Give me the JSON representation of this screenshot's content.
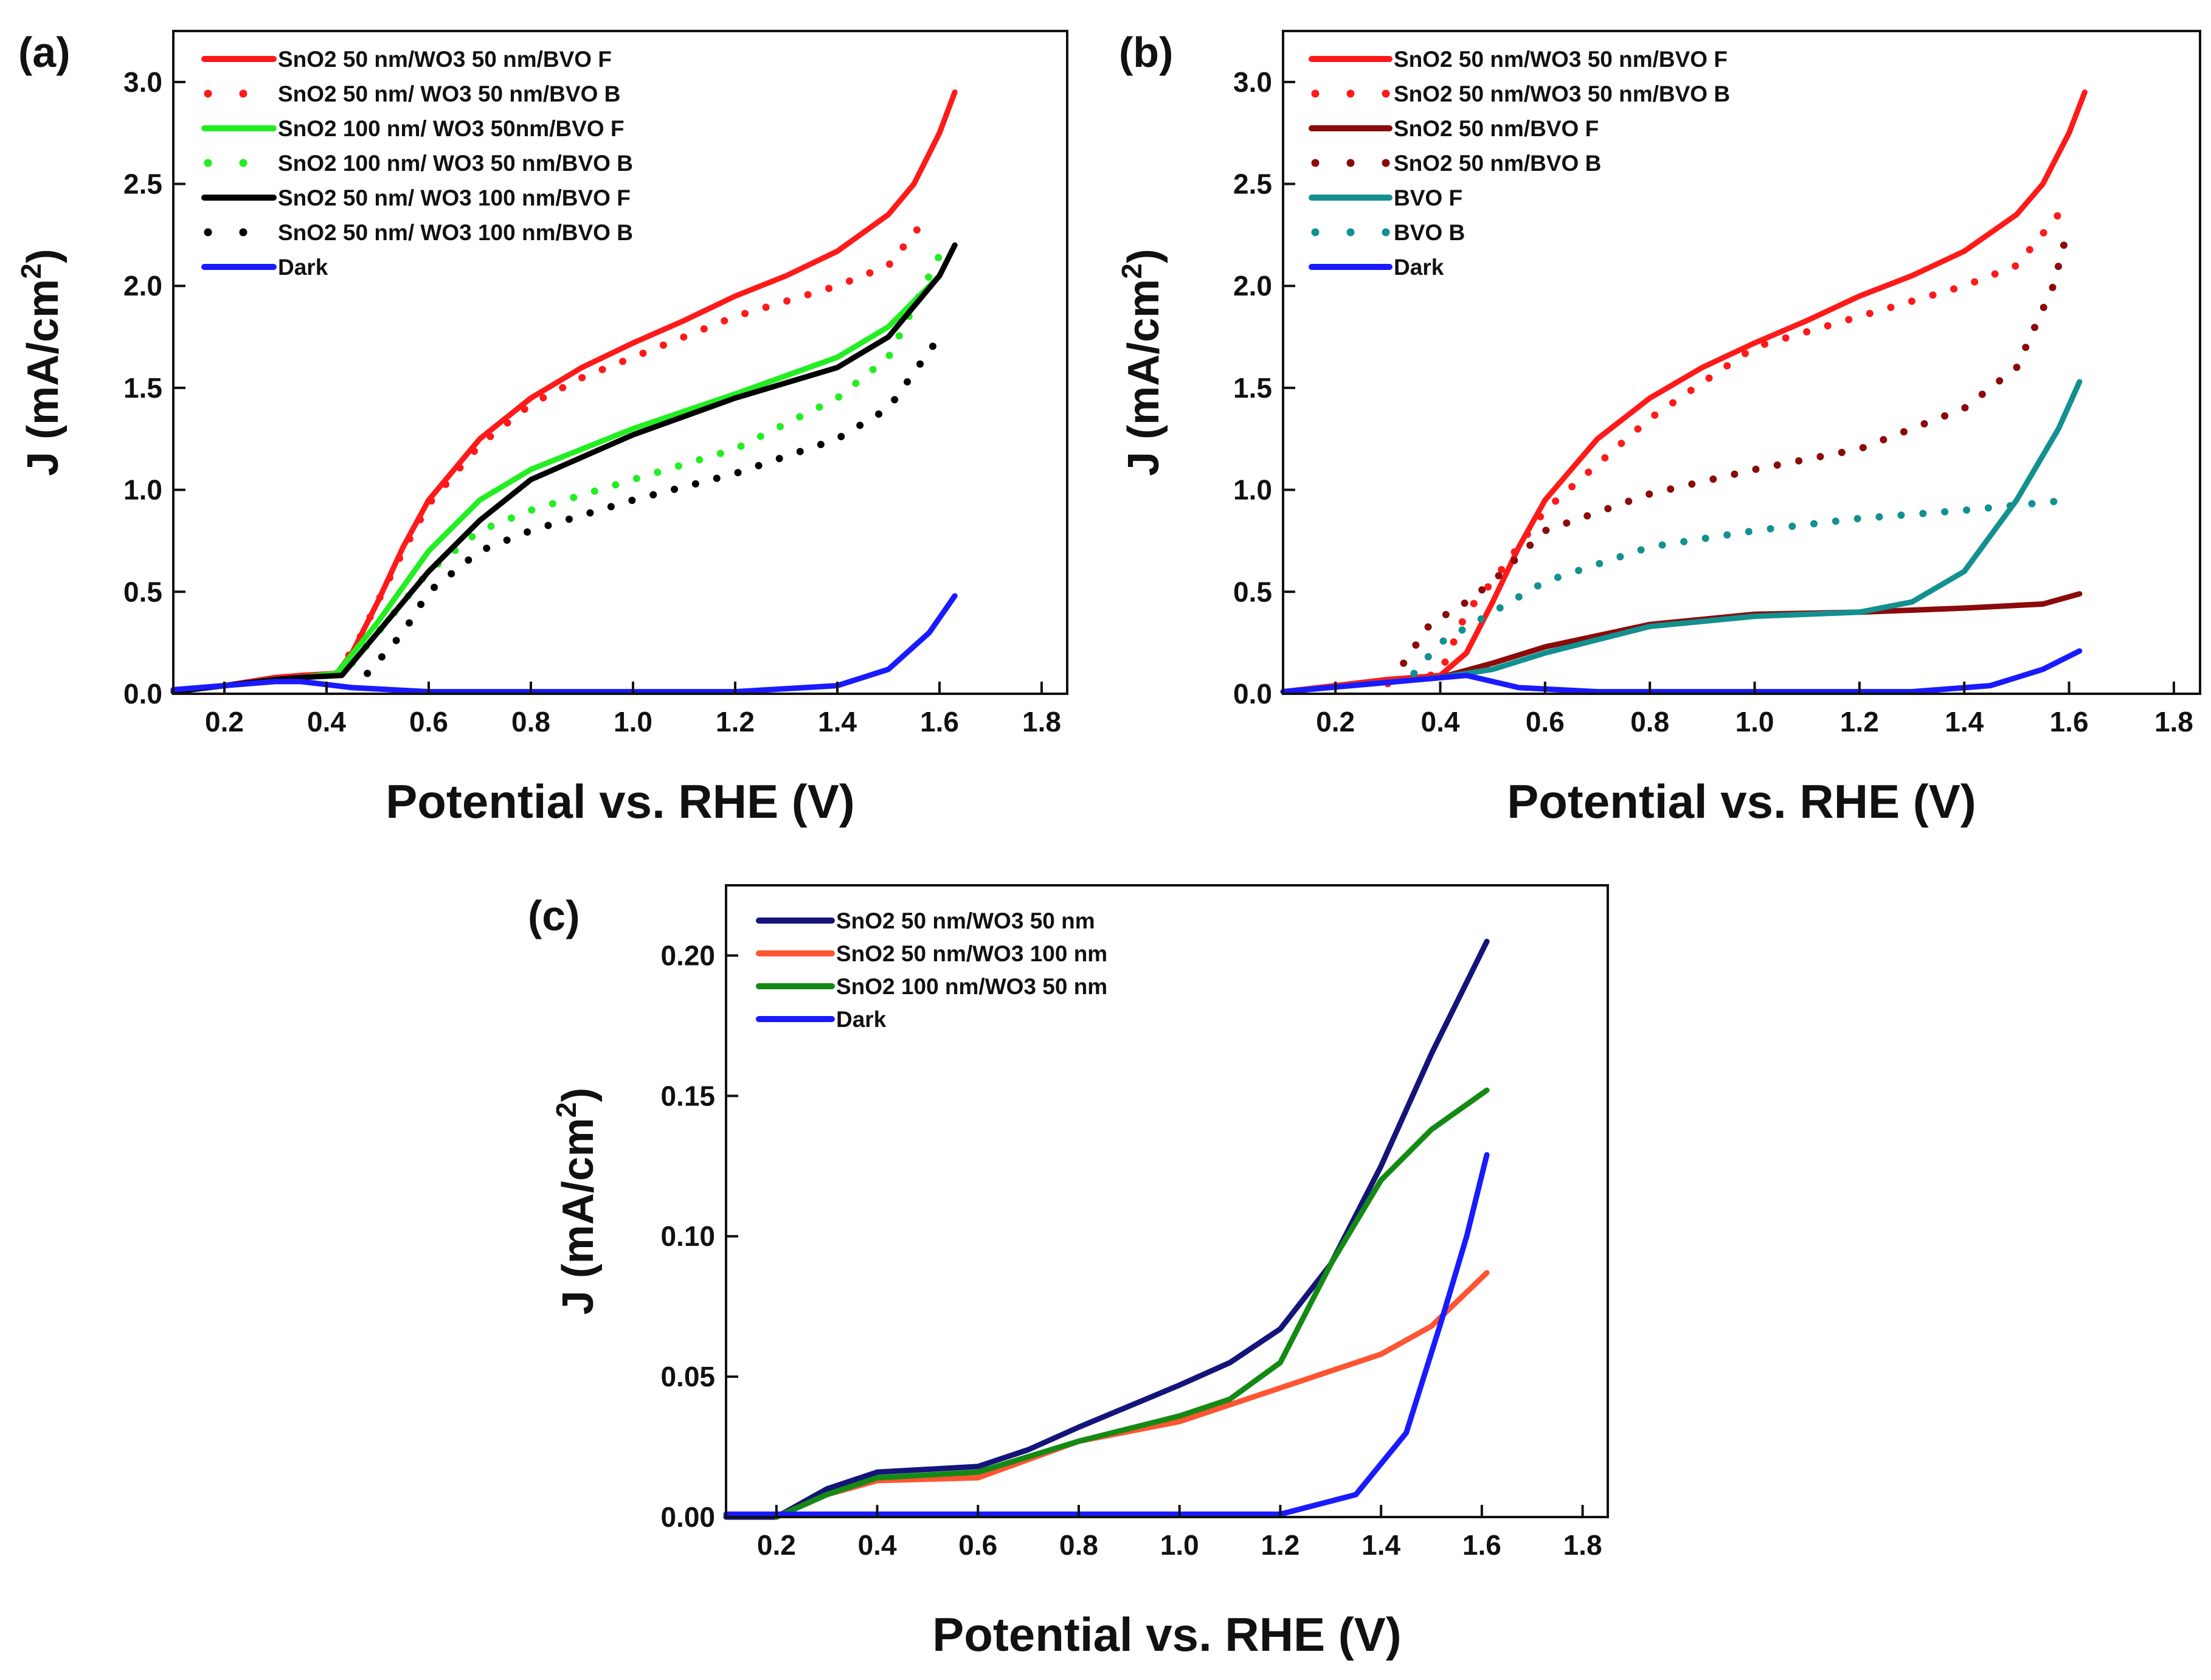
{
  "chart_data": [
    {
      "panel_label": "(a)",
      "type": "line",
      "xlabel": "Potential vs. RHE (V)",
      "ylabel": "J (mA/cm",
      "ylabel_sup": "2",
      "ylabel_close": ")",
      "xlim": [
        0.1,
        1.85
      ],
      "ylim": [
        0,
        3.25
      ],
      "xticks": [
        "0.2",
        "0.4",
        "0.6",
        "0.8",
        "1.0",
        "1.2",
        "1.4",
        "1.6",
        "1.8"
      ],
      "yticks": [
        "0.0",
        "0.5",
        "1.0",
        "1.5",
        "2.0",
        "2.5",
        "3.0"
      ],
      "grid": false,
      "legend_position": "top-left",
      "series": [
        {
          "name": "SnO2 50 nm/WO3 50 nm/BVO F",
          "color": "#ff1a1a",
          "style": "solid",
          "points": [
            [
              0.1,
              0.01
            ],
            [
              0.2,
              0.04
            ],
            [
              0.3,
              0.08
            ],
            [
              0.35,
              0.09
            ],
            [
              0.42,
              0.1
            ],
            [
              0.45,
              0.2
            ],
            [
              0.5,
              0.45
            ],
            [
              0.55,
              0.72
            ],
            [
              0.6,
              0.95
            ],
            [
              0.7,
              1.25
            ],
            [
              0.8,
              1.45
            ],
            [
              0.9,
              1.6
            ],
            [
              1.0,
              1.72
            ],
            [
              1.1,
              1.83
            ],
            [
              1.2,
              1.95
            ],
            [
              1.3,
              2.05
            ],
            [
              1.4,
              2.17
            ],
            [
              1.5,
              2.35
            ],
            [
              1.55,
              2.5
            ],
            [
              1.6,
              2.75
            ],
            [
              1.63,
              2.95
            ]
          ]
        },
        {
          "name": "SnO2 50 nm/ WO3 50 nm/BVO B",
          "color": "#ff1a1a",
          "style": "dot",
          "points": [
            [
              0.42,
              0.1
            ],
            [
              0.46,
              0.25
            ],
            [
              0.5,
              0.45
            ],
            [
              0.55,
              0.7
            ],
            [
              0.6,
              0.93
            ],
            [
              0.7,
              1.22
            ],
            [
              0.8,
              1.42
            ],
            [
              0.9,
              1.55
            ],
            [
              1.0,
              1.65
            ],
            [
              1.2,
              1.85
            ],
            [
              1.4,
              2.0
            ],
            [
              1.5,
              2.1
            ],
            [
              1.58,
              2.35
            ]
          ]
        },
        {
          "name": "SnO2 100 nm/ WO3 50nm/BVO F",
          "color": "#22ee22",
          "style": "solid",
          "points": [
            [
              0.1,
              0.01
            ],
            [
              0.2,
              0.04
            ],
            [
              0.3,
              0.07
            ],
            [
              0.35,
              0.08
            ],
            [
              0.42,
              0.1
            ],
            [
              0.5,
              0.35
            ],
            [
              0.6,
              0.7
            ],
            [
              0.7,
              0.95
            ],
            [
              0.8,
              1.1
            ],
            [
              1.0,
              1.3
            ],
            [
              1.2,
              1.47
            ],
            [
              1.4,
              1.65
            ],
            [
              1.5,
              1.8
            ],
            [
              1.6,
              2.05
            ],
            [
              1.63,
              2.2
            ]
          ]
        },
        {
          "name": "SnO2 100 nm/ WO3 50 nm/BVO B",
          "color": "#22ee22",
          "style": "dot",
          "points": [
            [
              0.45,
              0.15
            ],
            [
              0.5,
              0.3
            ],
            [
              0.6,
              0.6
            ],
            [
              0.7,
              0.8
            ],
            [
              0.8,
              0.9
            ],
            [
              1.0,
              1.05
            ],
            [
              1.2,
              1.2
            ],
            [
              1.4,
              1.45
            ],
            [
              1.5,
              1.65
            ],
            [
              1.6,
              2.15
            ]
          ]
        },
        {
          "name": "SnO2 50 nm/ WO3 100 nm/BVO F",
          "color": "#000000",
          "style": "solid",
          "points": [
            [
              0.1,
              0.01
            ],
            [
              0.2,
              0.04
            ],
            [
              0.3,
              0.07
            ],
            [
              0.35,
              0.08
            ],
            [
              0.43,
              0.09
            ],
            [
              0.5,
              0.3
            ],
            [
              0.6,
              0.6
            ],
            [
              0.7,
              0.85
            ],
            [
              0.8,
              1.05
            ],
            [
              1.0,
              1.27
            ],
            [
              1.2,
              1.45
            ],
            [
              1.4,
              1.6
            ],
            [
              1.5,
              1.75
            ],
            [
              1.6,
              2.05
            ],
            [
              1.63,
              2.2
            ]
          ]
        },
        {
          "name": "SnO2 50 nm/ WO3 100 nm/BVO B",
          "color": "#000000",
          "style": "dot",
          "points": [
            [
              0.48,
              0.1
            ],
            [
              0.55,
              0.3
            ],
            [
              0.6,
              0.5
            ],
            [
              0.7,
              0.7
            ],
            [
              0.8,
              0.8
            ],
            [
              1.0,
              0.95
            ],
            [
              1.2,
              1.08
            ],
            [
              1.4,
              1.25
            ],
            [
              1.5,
              1.4
            ],
            [
              1.6,
              1.75
            ]
          ]
        },
        {
          "name": "Dark",
          "color": "#1a1aff",
          "style": "solid",
          "points": [
            [
              0.1,
              0.02
            ],
            [
              0.3,
              0.06
            ],
            [
              0.35,
              0.06
            ],
            [
              0.45,
              0.03
            ],
            [
              0.6,
              0.01
            ],
            [
              1.2,
              0.01
            ],
            [
              1.4,
              0.04
            ],
            [
              1.5,
              0.12
            ],
            [
              1.58,
              0.3
            ],
            [
              1.63,
              0.48
            ]
          ]
        }
      ]
    },
    {
      "panel_label": "(b)",
      "type": "line",
      "xlabel": "Potential vs. RHE (V)",
      "ylabel": "J (mA/cm",
      "ylabel_sup": "2",
      "ylabel_close": ")",
      "xlim": [
        0.1,
        1.85
      ],
      "ylim": [
        0,
        3.25
      ],
      "xticks": [
        "0.2",
        "0.4",
        "0.6",
        "0.8",
        "1.0",
        "1.2",
        "1.4",
        "1.6",
        "1.8"
      ],
      "yticks": [
        "0.0",
        "0.5",
        "1.0",
        "1.5",
        "2.0",
        "2.5",
        "3.0"
      ],
      "grid": false,
      "legend_position": "top-left",
      "series": [
        {
          "name": "SnO2 50 nm/WO3 50 nm/BVO F",
          "color": "#ff1a1a",
          "style": "solid",
          "points": [
            [
              0.1,
              0.01
            ],
            [
              0.2,
              0.04
            ],
            [
              0.3,
              0.07
            ],
            [
              0.4,
              0.09
            ],
            [
              0.45,
              0.2
            ],
            [
              0.5,
              0.45
            ],
            [
              0.55,
              0.72
            ],
            [
              0.6,
              0.95
            ],
            [
              0.7,
              1.25
            ],
            [
              0.8,
              1.45
            ],
            [
              0.9,
              1.6
            ],
            [
              1.0,
              1.72
            ],
            [
              1.1,
              1.83
            ],
            [
              1.2,
              1.95
            ],
            [
              1.3,
              2.05
            ],
            [
              1.4,
              2.17
            ],
            [
              1.5,
              2.35
            ],
            [
              1.55,
              2.5
            ],
            [
              1.6,
              2.75
            ],
            [
              1.63,
              2.95
            ]
          ]
        },
        {
          "name": "SnO2 50 nm/WO3 50 nm/BVO B",
          "color": "#ff1a1a",
          "style": "dot",
          "points": [
            [
              0.3,
              0.05
            ],
            [
              0.4,
              0.1
            ],
            [
              0.45,
              0.4
            ],
            [
              0.5,
              0.55
            ],
            [
              0.6,
              0.9
            ],
            [
              0.8,
              1.35
            ],
            [
              1.0,
              1.7
            ],
            [
              1.2,
              1.85
            ],
            [
              1.4,
              2.0
            ],
            [
              1.5,
              2.1
            ],
            [
              1.58,
              2.35
            ]
          ]
        },
        {
          "name": "SnO2 50 nm/BVO F",
          "color": "#8b0a0a",
          "style": "solid",
          "points": [
            [
              0.1,
              0.01
            ],
            [
              0.4,
              0.08
            ],
            [
              0.5,
              0.15
            ],
            [
              0.6,
              0.23
            ],
            [
              0.8,
              0.34
            ],
            [
              1.0,
              0.39
            ],
            [
              1.2,
              0.4
            ],
            [
              1.4,
              0.42
            ],
            [
              1.55,
              0.44
            ],
            [
              1.62,
              0.49
            ]
          ]
        },
        {
          "name": "SnO2 50 nm/BVO B",
          "color": "#8b0a0a",
          "style": "dot",
          "points": [
            [
              0.33,
              0.15
            ],
            [
              0.38,
              0.34
            ],
            [
              0.45,
              0.45
            ],
            [
              0.5,
              0.55
            ],
            [
              0.6,
              0.8
            ],
            [
              0.8,
              0.98
            ],
            [
              1.0,
              1.1
            ],
            [
              1.2,
              1.2
            ],
            [
              1.4,
              1.4
            ],
            [
              1.5,
              1.6
            ],
            [
              1.57,
              2.0
            ],
            [
              1.6,
              2.3
            ]
          ]
        },
        {
          "name": "BVO F",
          "color": "#139090",
          "style": "solid",
          "points": [
            [
              0.1,
              0.01
            ],
            [
              0.4,
              0.08
            ],
            [
              0.5,
              0.12
            ],
            [
              0.6,
              0.2
            ],
            [
              0.8,
              0.33
            ],
            [
              1.0,
              0.38
            ],
            [
              1.2,
              0.4
            ],
            [
              1.3,
              0.45
            ],
            [
              1.4,
              0.6
            ],
            [
              1.5,
              0.95
            ],
            [
              1.58,
              1.3
            ],
            [
              1.62,
              1.53
            ]
          ]
        },
        {
          "name": "BVO B",
          "color": "#139090",
          "style": "dot",
          "points": [
            [
              0.35,
              0.1
            ],
            [
              0.4,
              0.25
            ],
            [
              0.5,
              0.4
            ],
            [
              0.6,
              0.55
            ],
            [
              0.8,
              0.72
            ],
            [
              1.0,
              0.8
            ],
            [
              1.2,
              0.86
            ],
            [
              1.4,
              0.9
            ],
            [
              1.6,
              0.95
            ]
          ]
        },
        {
          "name": "Dark",
          "color": "#1a1aff",
          "style": "solid",
          "points": [
            [
              0.1,
              0.01
            ],
            [
              0.45,
              0.09
            ],
            [
              0.55,
              0.03
            ],
            [
              0.7,
              0.01
            ],
            [
              1.3,
              0.01
            ],
            [
              1.45,
              0.04
            ],
            [
              1.55,
              0.12
            ],
            [
              1.62,
              0.21
            ]
          ]
        }
      ]
    },
    {
      "panel_label": "(c)",
      "type": "line",
      "xlabel": "Potential vs. RHE (V)",
      "ylabel": "J (mA/cm",
      "ylabel_sup": "2",
      "ylabel_close": ")",
      "xlim": [
        0.1,
        1.85
      ],
      "ylim": [
        0,
        0.225
      ],
      "xticks": [
        "0.2",
        "0.4",
        "0.6",
        "0.8",
        "1.0",
        "1.2",
        "1.4",
        "1.6",
        "1.8"
      ],
      "yticks": [
        "0.00",
        "0.05",
        "0.10",
        "0.15",
        "0.20"
      ],
      "grid": false,
      "legend_position": "top-left",
      "series": [
        {
          "name": "SnO2 50 nm/WO3 50 nm",
          "color": "#14147a",
          "style": "solid",
          "points": [
            [
              0.1,
              0
            ],
            [
              0.2,
              0
            ],
            [
              0.3,
              0.01
            ],
            [
              0.4,
              0.016
            ],
            [
              0.6,
              0.018
            ],
            [
              0.7,
              0.024
            ],
            [
              0.8,
              0.032
            ],
            [
              1.0,
              0.047
            ],
            [
              1.1,
              0.055
            ],
            [
              1.2,
              0.067
            ],
            [
              1.3,
              0.09
            ],
            [
              1.4,
              0.125
            ],
            [
              1.5,
              0.165
            ],
            [
              1.61,
              0.205
            ]
          ]
        },
        {
          "name": "SnO2 50 nm/WO3 100 nm",
          "color": "#ff5533",
          "style": "solid",
          "points": [
            [
              0.2,
              0
            ],
            [
              0.3,
              0.008
            ],
            [
              0.4,
              0.013
            ],
            [
              0.6,
              0.014
            ],
            [
              0.8,
              0.027
            ],
            [
              1.0,
              0.034
            ],
            [
              1.2,
              0.046
            ],
            [
              1.4,
              0.058
            ],
            [
              1.5,
              0.068
            ],
            [
              1.61,
              0.087
            ]
          ]
        },
        {
          "name": "SnO2 100 nm/WO3 50 nm",
          "color": "#138a13",
          "style": "solid",
          "points": [
            [
              0.2,
              0
            ],
            [
              0.3,
              0.008
            ],
            [
              0.4,
              0.014
            ],
            [
              0.6,
              0.016
            ],
            [
              0.8,
              0.027
            ],
            [
              1.0,
              0.036
            ],
            [
              1.1,
              0.042
            ],
            [
              1.2,
              0.055
            ],
            [
              1.3,
              0.09
            ],
            [
              1.4,
              0.12
            ],
            [
              1.5,
              0.138
            ],
            [
              1.61,
              0.152
            ]
          ]
        },
        {
          "name": "Dark",
          "color": "#1a1aff",
          "style": "solid",
          "points": [
            [
              0.1,
              0.001
            ],
            [
              1.2,
              0.001
            ],
            [
              1.35,
              0.008
            ],
            [
              1.45,
              0.03
            ],
            [
              1.52,
              0.07
            ],
            [
              1.57,
              0.1
            ],
            [
              1.61,
              0.129
            ]
          ]
        }
      ]
    }
  ]
}
